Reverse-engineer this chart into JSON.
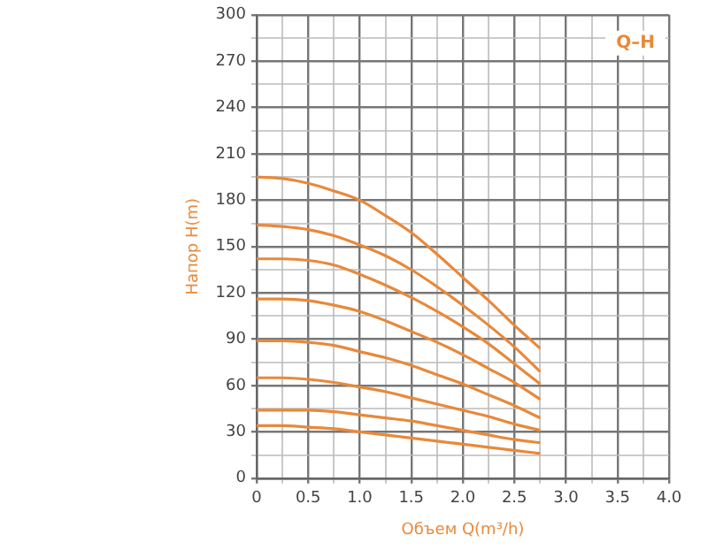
{
  "chart_data": {
    "type": "line",
    "xlabel": "Объем Q(m³/h)",
    "ylabel": "Напор H(m)",
    "annotations": [
      "Q–H"
    ],
    "x": [
      0,
      0.25,
      0.5,
      0.75,
      1.0,
      1.25,
      1.5,
      1.75,
      2.0,
      2.25,
      2.5,
      2.75
    ],
    "series": [
      {
        "color": "#e8893a",
        "values": [
          195,
          194,
          191,
          186,
          180,
          170,
          159,
          145,
          130,
          115,
          99,
          84
        ]
      },
      {
        "color": "#e8893a",
        "values": [
          164,
          163,
          161,
          157,
          151,
          144,
          135,
          124,
          112,
          99,
          85,
          69
        ]
      },
      {
        "color": "#e8893a",
        "values": [
          142,
          142,
          141,
          138,
          132,
          125,
          117,
          108,
          98,
          87,
          74,
          61
        ]
      },
      {
        "color": "#e8893a",
        "values": [
          116,
          116,
          115,
          112,
          108,
          102,
          95,
          88,
          80,
          71,
          62,
          51
        ]
      },
      {
        "color": "#e8893a",
        "values": [
          89,
          89,
          88,
          86,
          82,
          78,
          73,
          67,
          61,
          54,
          47,
          39
        ]
      },
      {
        "color": "#e8893a",
        "values": [
          65,
          65,
          64,
          62,
          59,
          56,
          52,
          48,
          44,
          40,
          35,
          31
        ]
      },
      {
        "color": "#e8893a",
        "values": [
          44,
          44,
          44,
          43,
          41,
          39,
          37,
          34,
          31,
          28,
          25,
          23
        ]
      },
      {
        "color": "#e8893a",
        "values": [
          34,
          34,
          33,
          32,
          30,
          28,
          26,
          24,
          22,
          20,
          18,
          16
        ]
      }
    ],
    "xlim": [
      0,
      4
    ],
    "xticks": [
      {
        "value": 0,
        "label": "0"
      },
      {
        "value": 0.25,
        "label": null
      },
      {
        "value": 0.5,
        "label": "0.5"
      },
      {
        "value": 0.75,
        "label": null
      },
      {
        "value": 1,
        "label": "1.0"
      },
      {
        "value": 1.25,
        "label": null
      },
      {
        "value": 1.5,
        "label": "1.5"
      },
      {
        "value": 1.75,
        "label": null
      },
      {
        "value": 2,
        "label": "2.0"
      },
      {
        "value": 2.25,
        "label": null
      },
      {
        "value": 2.5,
        "label": "2.5"
      },
      {
        "value": 2.75,
        "label": null
      },
      {
        "value": 3,
        "label": "3.0"
      },
      {
        "value": 3.25,
        "label": null
      },
      {
        "value": 3.5,
        "label": "3.5"
      },
      {
        "value": 3.75,
        "label": null
      },
      {
        "value": 4,
        "label": "4.0"
      }
    ],
    "ylim": [
      0,
      300
    ],
    "yticks": [
      0,
      {
        "value": 15,
        "label": null
      },
      30,
      {
        "value": 45,
        "label": null
      },
      60,
      {
        "value": 75,
        "label": null
      },
      90,
      {
        "value": 105,
        "label": null
      },
      120,
      {
        "value": 135,
        "label": null
      },
      150,
      {
        "value": 165,
        "label": null
      },
      180,
      {
        "value": 195,
        "label": null
      },
      210,
      {
        "value": 225,
        "label": null
      },
      240,
      {
        "value": 255,
        "label": null
      },
      270,
      {
        "value": 285,
        "label": null
      },
      300
    ],
    "grid": true,
    "legend": false,
    "marker": "none",
    "line_style": "solid"
  }
}
